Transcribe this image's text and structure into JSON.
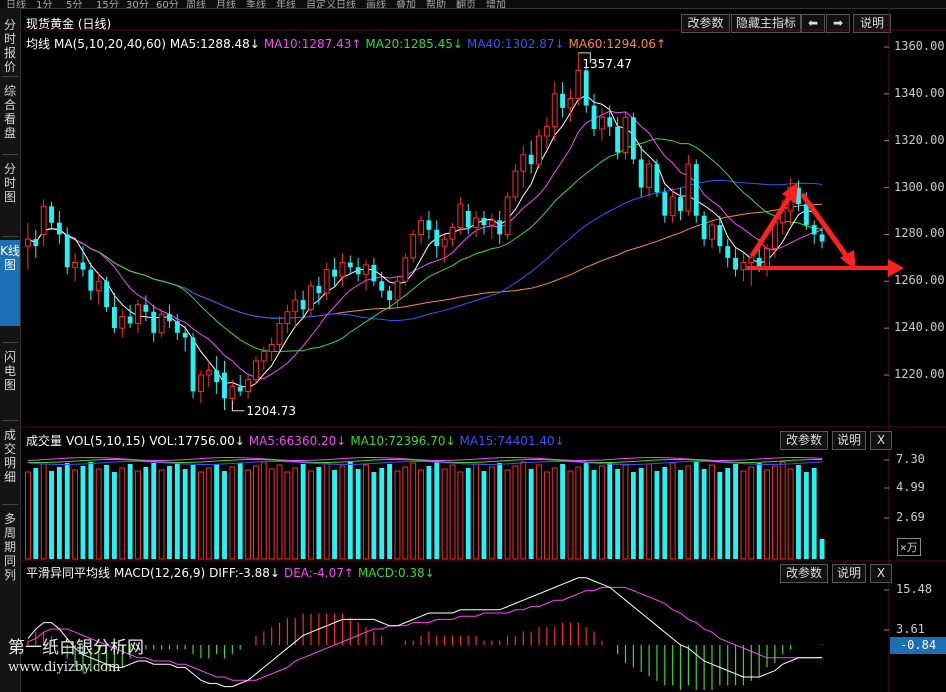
{
  "toolbar": {
    "items": [
      "日线",
      "1分",
      "5分",
      "15分",
      "30分",
      "60分",
      "周线",
      "月线",
      "季线",
      "年线",
      "自定义",
      "日线",
      "画线",
      "叠加",
      "帮助",
      "翻页",
      "增加"
    ]
  },
  "left_tabs": [
    "分时报价",
    "综合看盘",
    "分时图",
    "K线图",
    "闪电图",
    "成交明细",
    "多周期同列"
  ],
  "active_left_tab": 3,
  "header": {
    "title": "现货黄金 (日线)",
    "buttons": [
      "改参数",
      "隐藏主指标",
      "⬅",
      "➡",
      "说明"
    ]
  },
  "main": {
    "ma_label": "均线",
    "ma_items": [
      {
        "text": "MA(5,10,20,40,60)",
        "color": "#ffffff"
      },
      {
        "text": "MA5:1288.48↓",
        "color": "#ffffff"
      },
      {
        "text": "MA10:1287.43↑",
        "color": "#ff44ff"
      },
      {
        "text": "MA20:1285.45↓",
        "color": "#33dd33"
      },
      {
        "text": "MA40:1302.87↓",
        "color": "#3355ff"
      },
      {
        "text": "MA60:1294.06↑",
        "color": "#ff8c1a"
      }
    ],
    "y_axis": [
      "1360.00",
      "1340.00",
      "1320.00",
      "1300.00",
      "1280.00",
      "1260.00",
      "1240.00",
      "1220.00"
    ],
    "high_label": "1357.47",
    "low_label": "1204.73"
  },
  "volume": {
    "title_items": [
      {
        "text": "成交量",
        "color": "#ffffff"
      },
      {
        "text": "VOL(5,10,15)",
        "color": "#ffffff"
      },
      {
        "text": "VOL:17756.00↓",
        "color": "#ffffff"
      },
      {
        "text": "MA5:66360.20↓",
        "color": "#ff44ff"
      },
      {
        "text": "MA10:72396.70↓",
        "color": "#33dd33"
      },
      {
        "text": "MA15:74401.40↓",
        "color": "#3355ff"
      }
    ],
    "buttons": [
      "改参数",
      "说明",
      "X"
    ],
    "y_axis": [
      "7.30",
      "4.99",
      "2.69"
    ],
    "unit": "×万"
  },
  "macd": {
    "title_items": [
      {
        "text": "平滑异同平均线",
        "color": "#ffffff"
      },
      {
        "text": "MACD(12,26,9)",
        "color": "#ffffff"
      },
      {
        "text": "DIFF:-3.88↓",
        "color": "#ffffff"
      },
      {
        "text": "DEA:-4.07↑",
        "color": "#ff44ff"
      },
      {
        "text": "MACD:0.38↓",
        "color": "#33dd33"
      }
    ],
    "buttons": [
      "改参数",
      "说明",
      "X"
    ],
    "y_axis": [
      "15.48",
      "3.61"
    ],
    "current": "-0.84"
  },
  "watermark": {
    "line1": "第一纸白银分析网",
    "line2": "www.diyizby.com"
  },
  "colors": {
    "up": "#ff2a2a",
    "down": "#25f2f2",
    "background": "#000000",
    "grid": "#5a0a0a",
    "axis_text": "#cccccc",
    "annotation": "#ff2020"
  },
  "chart_data": {
    "type": "candlestick",
    "title": "现货黄金 (日线)",
    "ylim": [
      1200,
      1365
    ],
    "candles": [
      {
        "o": 1275,
        "h": 1285,
        "l": 1265,
        "c": 1278
      },
      {
        "o": 1278,
        "h": 1282,
        "l": 1270,
        "c": 1275
      },
      {
        "o": 1280,
        "h": 1295,
        "l": 1275,
        "c": 1292
      },
      {
        "o": 1292,
        "h": 1294,
        "l": 1282,
        "c": 1285
      },
      {
        "o": 1285,
        "h": 1290,
        "l": 1276,
        "c": 1280
      },
      {
        "o": 1280,
        "h": 1283,
        "l": 1263,
        "c": 1266
      },
      {
        "o": 1266,
        "h": 1272,
        "l": 1260,
        "c": 1268
      },
      {
        "o": 1268,
        "h": 1275,
        "l": 1262,
        "c": 1265
      },
      {
        "o": 1265,
        "h": 1268,
        "l": 1252,
        "c": 1256
      },
      {
        "o": 1256,
        "h": 1264,
        "l": 1250,
        "c": 1260
      },
      {
        "o": 1260,
        "h": 1262,
        "l": 1247,
        "c": 1249
      },
      {
        "o": 1249,
        "h": 1255,
        "l": 1238,
        "c": 1240
      },
      {
        "o": 1240,
        "h": 1248,
        "l": 1236,
        "c": 1245
      },
      {
        "o": 1245,
        "h": 1250,
        "l": 1240,
        "c": 1242
      },
      {
        "o": 1242,
        "h": 1252,
        "l": 1238,
        "c": 1250
      },
      {
        "o": 1250,
        "h": 1254,
        "l": 1243,
        "c": 1247
      },
      {
        "o": 1247,
        "h": 1250,
        "l": 1234,
        "c": 1238
      },
      {
        "o": 1238,
        "h": 1248,
        "l": 1236,
        "c": 1246
      },
      {
        "o": 1246,
        "h": 1250,
        "l": 1240,
        "c": 1243
      },
      {
        "o": 1243,
        "h": 1246,
        "l": 1235,
        "c": 1238
      },
      {
        "o": 1238,
        "h": 1241,
        "l": 1230,
        "c": 1236
      },
      {
        "o": 1236,
        "h": 1238,
        "l": 1210,
        "c": 1213
      },
      {
        "o": 1213,
        "h": 1222,
        "l": 1208,
        "c": 1220
      },
      {
        "o": 1220,
        "h": 1226,
        "l": 1215,
        "c": 1222
      },
      {
        "o": 1222,
        "h": 1228,
        "l": 1212,
        "c": 1217
      },
      {
        "o": 1221,
        "h": 1226,
        "l": 1205,
        "c": 1210
      },
      {
        "o": 1210,
        "h": 1218,
        "l": 1204.73,
        "c": 1215
      },
      {
        "o": 1215,
        "h": 1220,
        "l": 1211,
        "c": 1213
      },
      {
        "o": 1213,
        "h": 1220,
        "l": 1210,
        "c": 1218
      },
      {
        "o": 1218,
        "h": 1228,
        "l": 1216,
        "c": 1226
      },
      {
        "o": 1226,
        "h": 1232,
        "l": 1222,
        "c": 1230
      },
      {
        "o": 1230,
        "h": 1236,
        "l": 1226,
        "c": 1233
      },
      {
        "o": 1233,
        "h": 1245,
        "l": 1230,
        "c": 1242
      },
      {
        "o": 1242,
        "h": 1250,
        "l": 1238,
        "c": 1247
      },
      {
        "o": 1247,
        "h": 1256,
        "l": 1240,
        "c": 1252
      },
      {
        "o": 1252,
        "h": 1256,
        "l": 1244,
        "c": 1248
      },
      {
        "o": 1248,
        "h": 1260,
        "l": 1245,
        "c": 1258
      },
      {
        "o": 1258,
        "h": 1262,
        "l": 1250,
        "c": 1255
      },
      {
        "o": 1255,
        "h": 1268,
        "l": 1252,
        "c": 1265
      },
      {
        "o": 1265,
        "h": 1270,
        "l": 1258,
        "c": 1262
      },
      {
        "o": 1262,
        "h": 1272,
        "l": 1258,
        "c": 1268
      },
      {
        "o": 1268,
        "h": 1271,
        "l": 1263,
        "c": 1266
      },
      {
        "o": 1266,
        "h": 1270,
        "l": 1260,
        "c": 1263
      },
      {
        "o": 1263,
        "h": 1269,
        "l": 1256,
        "c": 1267
      },
      {
        "o": 1267,
        "h": 1270,
        "l": 1258,
        "c": 1260
      },
      {
        "o": 1260,
        "h": 1264,
        "l": 1253,
        "c": 1256
      },
      {
        "o": 1256,
        "h": 1258,
        "l": 1248,
        "c": 1252
      },
      {
        "o": 1252,
        "h": 1262,
        "l": 1249,
        "c": 1260
      },
      {
        "o": 1260,
        "h": 1272,
        "l": 1258,
        "c": 1270
      },
      {
        "o": 1270,
        "h": 1282,
        "l": 1268,
        "c": 1280
      },
      {
        "o": 1280,
        "h": 1288,
        "l": 1276,
        "c": 1286
      },
      {
        "o": 1286,
        "h": 1290,
        "l": 1278,
        "c": 1282
      },
      {
        "o": 1282,
        "h": 1286,
        "l": 1270,
        "c": 1275
      },
      {
        "o": 1275,
        "h": 1280,
        "l": 1268,
        "c": 1278
      },
      {
        "o": 1278,
        "h": 1285,
        "l": 1275,
        "c": 1283
      },
      {
        "o": 1283,
        "h": 1296,
        "l": 1280,
        "c": 1293
      },
      {
        "o": 1290,
        "h": 1293,
        "l": 1280,
        "c": 1283
      },
      {
        "o": 1283,
        "h": 1290,
        "l": 1279,
        "c": 1287
      },
      {
        "o": 1287,
        "h": 1290,
        "l": 1280,
        "c": 1284
      },
      {
        "o": 1284,
        "h": 1289,
        "l": 1278,
        "c": 1286
      },
      {
        "o": 1286,
        "h": 1290,
        "l": 1276,
        "c": 1280
      },
      {
        "o": 1280,
        "h": 1298,
        "l": 1278,
        "c": 1296
      },
      {
        "o": 1296,
        "h": 1310,
        "l": 1294,
        "c": 1307
      },
      {
        "o": 1307,
        "h": 1318,
        "l": 1300,
        "c": 1314
      },
      {
        "o": 1314,
        "h": 1320,
        "l": 1306,
        "c": 1310
      },
      {
        "o": 1310,
        "h": 1325,
        "l": 1308,
        "c": 1322
      },
      {
        "o": 1322,
        "h": 1330,
        "l": 1316,
        "c": 1326
      },
      {
        "o": 1326,
        "h": 1345,
        "l": 1320,
        "c": 1340
      },
      {
        "o": 1340,
        "h": 1345,
        "l": 1330,
        "c": 1334
      },
      {
        "o": 1334,
        "h": 1342,
        "l": 1328,
        "c": 1338
      },
      {
        "o": 1338,
        "h": 1357.47,
        "l": 1335,
        "c": 1350
      },
      {
        "o": 1350,
        "h": 1352,
        "l": 1332,
        "c": 1335
      },
      {
        "o": 1335,
        "h": 1340,
        "l": 1322,
        "c": 1325
      },
      {
        "o": 1325,
        "h": 1334,
        "l": 1320,
        "c": 1330
      },
      {
        "o": 1330,
        "h": 1335,
        "l": 1322,
        "c": 1326
      },
      {
        "o": 1326,
        "h": 1330,
        "l": 1312,
        "c": 1315
      },
      {
        "o": 1315,
        "h": 1332,
        "l": 1312,
        "c": 1330
      },
      {
        "o": 1330,
        "h": 1332,
        "l": 1310,
        "c": 1312
      },
      {
        "o": 1312,
        "h": 1318,
        "l": 1296,
        "c": 1300
      },
      {
        "o": 1300,
        "h": 1312,
        "l": 1296,
        "c": 1310
      },
      {
        "o": 1310,
        "h": 1312,
        "l": 1296,
        "c": 1298
      },
      {
        "o": 1298,
        "h": 1300,
        "l": 1285,
        "c": 1288
      },
      {
        "o": 1288,
        "h": 1300,
        "l": 1285,
        "c": 1296
      },
      {
        "o": 1296,
        "h": 1300,
        "l": 1286,
        "c": 1290
      },
      {
        "o": 1290,
        "h": 1314,
        "l": 1288,
        "c": 1310
      },
      {
        "o": 1310,
        "h": 1312,
        "l": 1285,
        "c": 1288
      },
      {
        "o": 1288,
        "h": 1290,
        "l": 1275,
        "c": 1278
      },
      {
        "o": 1278,
        "h": 1286,
        "l": 1274,
        "c": 1284
      },
      {
        "o": 1284,
        "h": 1288,
        "l": 1272,
        "c": 1275
      },
      {
        "o": 1275,
        "h": 1278,
        "l": 1266,
        "c": 1270
      },
      {
        "o": 1270,
        "h": 1274,
        "l": 1262,
        "c": 1265
      },
      {
        "o": 1265,
        "h": 1272,
        "l": 1260,
        "c": 1268
      },
      {
        "o": 1268,
        "h": 1272,
        "l": 1258,
        "c": 1270
      },
      {
        "o": 1270,
        "h": 1278,
        "l": 1264,
        "c": 1266
      },
      {
        "o": 1266,
        "h": 1276,
        "l": 1262,
        "c": 1274
      },
      {
        "o": 1274,
        "h": 1288,
        "l": 1270,
        "c": 1285
      },
      {
        "o": 1285,
        "h": 1295,
        "l": 1280,
        "c": 1290
      },
      {
        "o": 1290,
        "h": 1304,
        "l": 1284,
        "c": 1300
      },
      {
        "o": 1300,
        "h": 1303,
        "l": 1290,
        "c": 1293
      },
      {
        "o": 1293,
        "h": 1298,
        "l": 1282,
        "c": 1284
      },
      {
        "o": 1284,
        "h": 1286,
        "l": 1276,
        "c": 1280
      },
      {
        "o": 1280,
        "h": 1283,
        "l": 1274,
        "c": 1277
      }
    ],
    "macd_series": [
      {
        "name": "DIFF",
        "values": [
          2,
          5,
          7,
          7,
          5,
          2,
          -1,
          -3,
          -4,
          -5,
          -6,
          -7,
          -7,
          -6,
          -5,
          -5,
          -6,
          -6,
          -6,
          -7,
          -7,
          -9,
          -11,
          -12,
          -12,
          -13,
          -13,
          -12,
          -11,
          -9,
          -7,
          -5,
          -3,
          -1,
          1,
          3,
          4,
          5,
          6,
          7,
          8,
          8,
          8,
          8,
          8,
          7,
          6,
          6,
          7,
          8,
          9,
          10,
          10,
          10,
          10,
          11,
          11,
          11,
          11,
          11,
          11,
          12,
          13,
          14,
          15,
          16,
          17,
          18,
          19,
          20,
          21,
          21,
          20,
          19,
          18,
          16,
          14,
          12,
          10,
          8,
          6,
          4,
          2,
          0,
          -1,
          -3,
          -5,
          -6,
          -7,
          -8,
          -9,
          -10,
          -10,
          -10,
          -9,
          -8,
          -6,
          -5,
          -4,
          -4,
          -4,
          -3.88
        ]
      },
      {
        "name": "DEA",
        "values": [
          1,
          2,
          4,
          5,
          5,
          5,
          4,
          3,
          2,
          1,
          0,
          -1,
          -2,
          -3,
          -4,
          -4,
          -5,
          -5,
          -5,
          -6,
          -6,
          -7,
          -8,
          -9,
          -10,
          -10,
          -11,
          -11,
          -11,
          -11,
          -10,
          -9,
          -8,
          -7,
          -5,
          -4,
          -3,
          -2,
          -1,
          0,
          1,
          2,
          3,
          4,
          5,
          5,
          6,
          6,
          6,
          7,
          7,
          7,
          8,
          8,
          8,
          9,
          9,
          9,
          10,
          10,
          10,
          10,
          11,
          11,
          12,
          12,
          13,
          14,
          14,
          15,
          16,
          17,
          17,
          18,
          18,
          18,
          18,
          17,
          16,
          15,
          14,
          13,
          11,
          10,
          8,
          7,
          5,
          4,
          2,
          1,
          0,
          -1,
          -2,
          -3,
          -4,
          -4,
          -4,
          -4,
          -4,
          -4,
          -4,
          -4.07
        ]
      }
    ],
    "annotations": [
      "1357.47",
      "1204.73"
    ]
  }
}
